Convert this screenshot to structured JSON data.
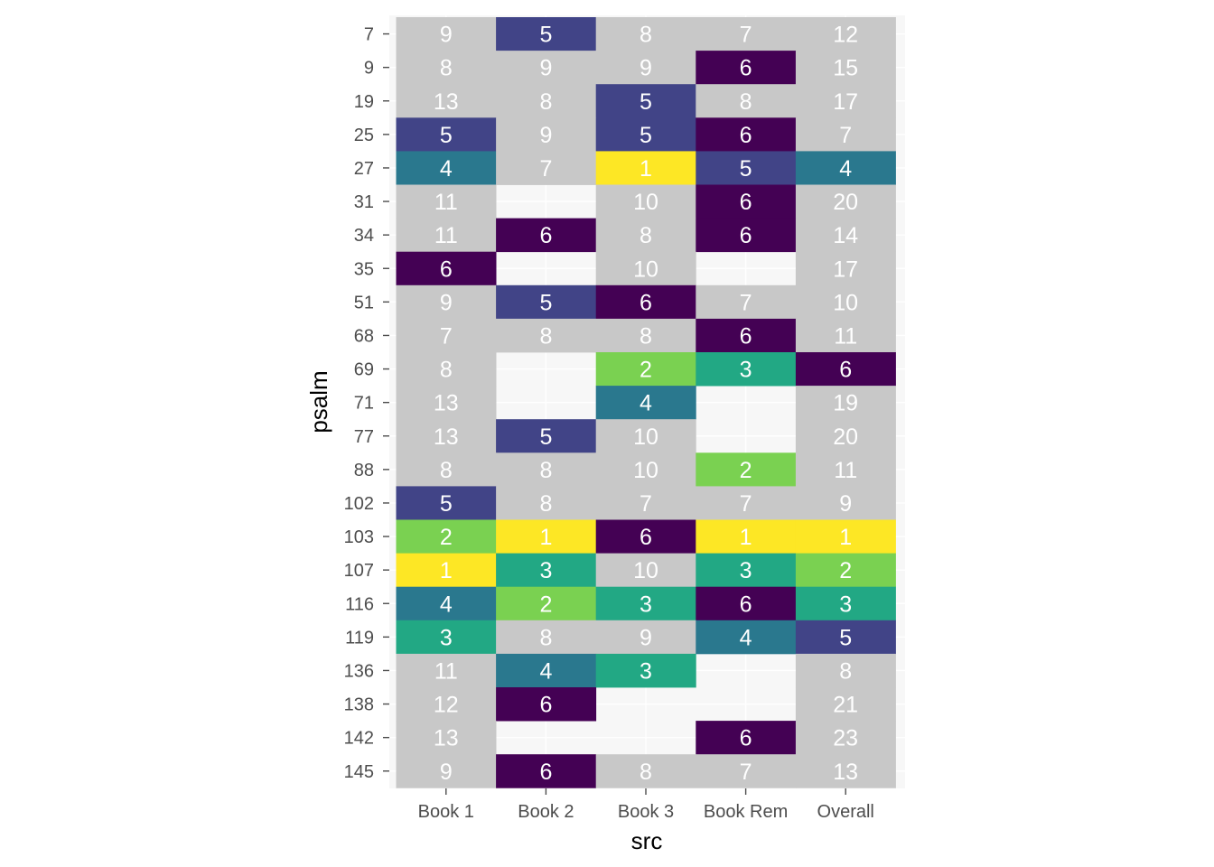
{
  "chart_data": {
    "type": "heatmap",
    "title": "",
    "xlabel": "src",
    "ylabel": "psalm",
    "x_categories": [
      "Book 1",
      "Book 2",
      "Book 3",
      "Book Rem",
      "Overall"
    ],
    "y_categories": [
      "7",
      "9",
      "19",
      "25",
      "27",
      "31",
      "34",
      "35",
      "51",
      "68",
      "69",
      "71",
      "77",
      "88",
      "102",
      "103",
      "107",
      "116",
      "119",
      "136",
      "138",
      "142",
      "145"
    ],
    "values": [
      [
        9,
        5,
        8,
        7,
        12
      ],
      [
        8,
        9,
        9,
        6,
        15
      ],
      [
        13,
        8,
        5,
        8,
        17
      ],
      [
        5,
        9,
        5,
        6,
        7
      ],
      [
        4,
        7,
        1,
        5,
        4
      ],
      [
        11,
        null,
        10,
        6,
        20
      ],
      [
        11,
        6,
        8,
        6,
        14
      ],
      [
        6,
        null,
        10,
        null,
        17
      ],
      [
        9,
        5,
        6,
        7,
        10
      ],
      [
        7,
        8,
        8,
        6,
        11
      ],
      [
        8,
        null,
        2,
        3,
        6
      ],
      [
        13,
        null,
        4,
        null,
        19
      ],
      [
        13,
        5,
        10,
        null,
        20
      ],
      [
        8,
        8,
        10,
        2,
        11
      ],
      [
        5,
        8,
        7,
        7,
        9
      ],
      [
        2,
        1,
        6,
        1,
        1
      ],
      [
        1,
        3,
        10,
        3,
        2
      ],
      [
        4,
        2,
        3,
        6,
        3
      ],
      [
        3,
        8,
        9,
        4,
        5
      ],
      [
        11,
        4,
        3,
        null,
        8
      ],
      [
        12,
        6,
        null,
        null,
        21
      ],
      [
        13,
        null,
        null,
        6,
        23
      ],
      [
        9,
        6,
        8,
        7,
        13
      ]
    ],
    "color_scale": {
      "1": "#fde725",
      "2": "#7ad151",
      "3": "#22a884",
      "4": "#2a788e",
      "5": "#414487",
      "6": "#440154",
      "other": "#c8c8c8"
    },
    "legend": "none",
    "grid": true
  }
}
